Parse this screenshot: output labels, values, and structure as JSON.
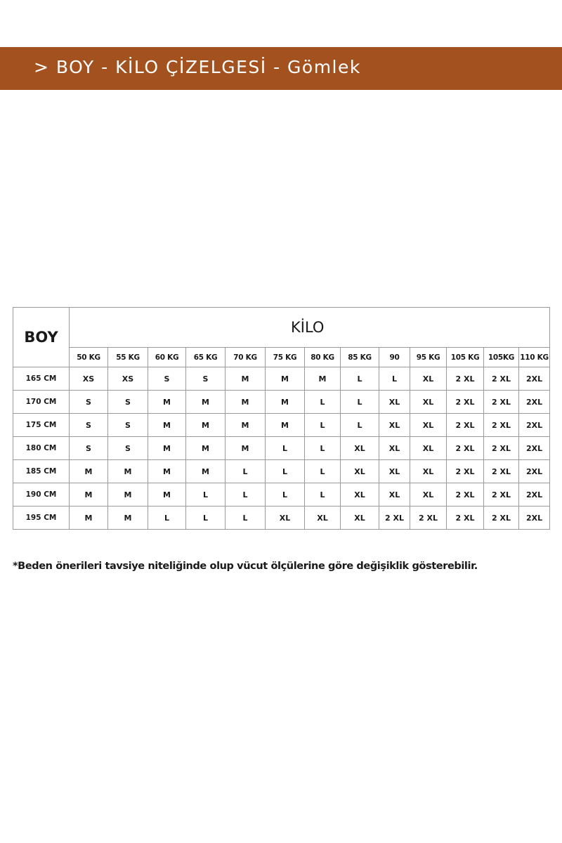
{
  "header": {
    "title": "> BOY - KİLO ÇİZELGESİ - Gömlek",
    "background_color": "#a3521f"
  },
  "table": {
    "row_header_label": "BOY",
    "column_group_label": "KİLO",
    "columns": [
      "50 KG",
      "55 KG",
      "60 KG",
      "65 KG",
      "70 KG",
      "75 KG",
      "80 KG",
      "85 KG",
      "90",
      "95 KG",
      "105 KG",
      "105KG",
      "110 KG"
    ],
    "rows": [
      {
        "height": "165 CM",
        "sizes": [
          "XS",
          "XS",
          "S",
          "S",
          "M",
          "M",
          "M",
          "L",
          "L",
          "XL",
          "2 XL",
          "2 XL",
          "2XL"
        ]
      },
      {
        "height": "170 CM",
        "sizes": [
          "S",
          "S",
          "M",
          "M",
          "M",
          "M",
          "L",
          "L",
          "XL",
          "XL",
          "2 XL",
          "2 XL",
          "2XL"
        ]
      },
      {
        "height": "175 CM",
        "sizes": [
          "S",
          "S",
          "M",
          "M",
          "M",
          "M",
          "L",
          "L",
          "XL",
          "XL",
          "2 XL",
          "2 XL",
          "2XL"
        ]
      },
      {
        "height": "180 CM",
        "sizes": [
          "S",
          "S",
          "M",
          "M",
          "M",
          "L",
          "L",
          "XL",
          "XL",
          "XL",
          "2 XL",
          "2 XL",
          "2XL"
        ]
      },
      {
        "height": "185 CM",
        "sizes": [
          "M",
          "M",
          "M",
          "M",
          "L",
          "L",
          "L",
          "XL",
          "XL",
          "XL",
          "2 XL",
          "2 XL",
          "2XL"
        ]
      },
      {
        "height": "190 CM",
        "sizes": [
          "M",
          "M",
          "M",
          "L",
          "L",
          "L",
          "L",
          "XL",
          "XL",
          "XL",
          "2 XL",
          "2 XL",
          "2XL"
        ]
      },
      {
        "height": "195 CM",
        "sizes": [
          "M",
          "M",
          "L",
          "L",
          "L",
          "XL",
          "XL",
          "XL",
          "2 XL",
          "2 XL",
          "2 XL",
          "2 XL",
          "2XL"
        ]
      }
    ]
  },
  "footnote": "*Beden önerileri tavsiye niteliğinde olup vücut ölçülerine göre değişiklik gösterebilir."
}
